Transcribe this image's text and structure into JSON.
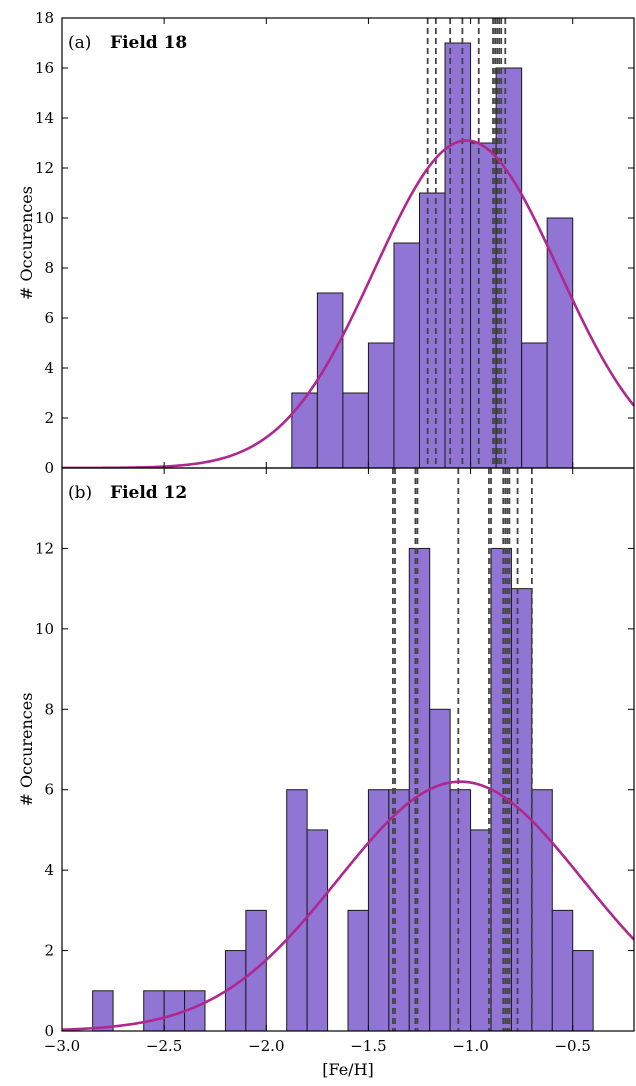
{
  "chart_data": [
    {
      "type": "bar",
      "panel_label": "(a)",
      "title": "Field 18",
      "xlabel": "",
      "ylabel": "# Occurences",
      "xlim": [
        -3.0,
        -0.2
      ],
      "ylim": [
        0,
        18
      ],
      "yticks": [
        0,
        2,
        4,
        6,
        8,
        10,
        12,
        14,
        16,
        18
      ],
      "bar_color": "#9075d4",
      "bars": [
        {
          "x0": -1.875,
          "x1": -1.75,
          "value": 3
        },
        {
          "x0": -1.75,
          "x1": -1.625,
          "value": 7
        },
        {
          "x0": -1.625,
          "x1": -1.5,
          "value": 3
        },
        {
          "x0": -1.5,
          "x1": -1.375,
          "value": 5
        },
        {
          "x0": -1.375,
          "x1": -1.25,
          "value": 9
        },
        {
          "x0": -1.25,
          "x1": -1.125,
          "value": 11
        },
        {
          "x0": -1.125,
          "x1": -1.0,
          "value": 17
        },
        {
          "x0": -1.0,
          "x1": -0.875,
          "value": 13
        },
        {
          "x0": -0.875,
          "x1": -0.75,
          "value": 16
        },
        {
          "x0": -0.75,
          "x1": -0.625,
          "value": 5
        },
        {
          "x0": -0.625,
          "x1": -0.5,
          "value": 10
        }
      ],
      "fit_curve": {
        "color": "#b0278f",
        "mean": -1.02,
        "sigma": 0.45,
        "peak": 13.1
      },
      "dashed_lines": [
        -1.21,
        -1.17,
        -1.1,
        -1.04,
        -0.96,
        -0.89,
        -0.88,
        -0.87,
        -0.86,
        -0.85,
        -0.83
      ]
    },
    {
      "type": "bar",
      "panel_label": "(b)",
      "title": "Field 12",
      "xlabel": "[Fe/H]",
      "ylabel": "# Occurences",
      "xlim": [
        -3.0,
        -0.2
      ],
      "ylim": [
        0,
        14
      ],
      "yticks": [
        0,
        2,
        4,
        6,
        8,
        10,
        12
      ],
      "xticks": [
        "−3.0",
        "−2.5",
        "−2.0",
        "−1.5",
        "−1.0",
        "−0.5"
      ],
      "xtick_values": [
        -3.0,
        -2.5,
        -2.0,
        -1.5,
        -1.0,
        -0.5
      ],
      "bar_color": "#9075d4",
      "bars": [
        {
          "x0": -2.85,
          "x1": -2.75,
          "value": 1
        },
        {
          "x0": -2.6,
          "x1": -2.5,
          "value": 1
        },
        {
          "x0": -2.5,
          "x1": -2.4,
          "value": 1
        },
        {
          "x0": -2.4,
          "x1": -2.3,
          "value": 1
        },
        {
          "x0": -2.2,
          "x1": -2.1,
          "value": 2
        },
        {
          "x0": -2.1,
          "x1": -2.0,
          "value": 3
        },
        {
          "x0": -1.9,
          "x1": -1.8,
          "value": 6
        },
        {
          "x0": -1.8,
          "x1": -1.7,
          "value": 5
        },
        {
          "x0": -1.6,
          "x1": -1.5,
          "value": 3
        },
        {
          "x0": -1.5,
          "x1": -1.4,
          "value": 6
        },
        {
          "x0": -1.4,
          "x1": -1.3,
          "value": 6
        },
        {
          "x0": -1.3,
          "x1": -1.2,
          "value": 12
        },
        {
          "x0": -1.2,
          "x1": -1.1,
          "value": 8
        },
        {
          "x0": -1.1,
          "x1": -1.0,
          "value": 6
        },
        {
          "x0": -1.0,
          "x1": -0.9,
          "value": 5
        },
        {
          "x0": -0.9,
          "x1": -0.8,
          "value": 12
        },
        {
          "x0": -0.8,
          "x1": -0.7,
          "value": 11
        },
        {
          "x0": -0.7,
          "x1": -0.6,
          "value": 6
        },
        {
          "x0": -0.6,
          "x1": -0.5,
          "value": 3
        },
        {
          "x0": -0.5,
          "x1": -0.4,
          "value": 2
        }
      ],
      "fit_curve": {
        "color": "#b0278f",
        "mean": -1.05,
        "sigma": 0.6,
        "peak": 6.2
      },
      "dashed_lines": [
        -1.38,
        -1.37,
        -1.27,
        -1.26,
        -1.06,
        -0.91,
        -0.9,
        -0.84,
        -0.83,
        -0.82,
        -0.81,
        -0.77,
        -0.7
      ]
    }
  ]
}
